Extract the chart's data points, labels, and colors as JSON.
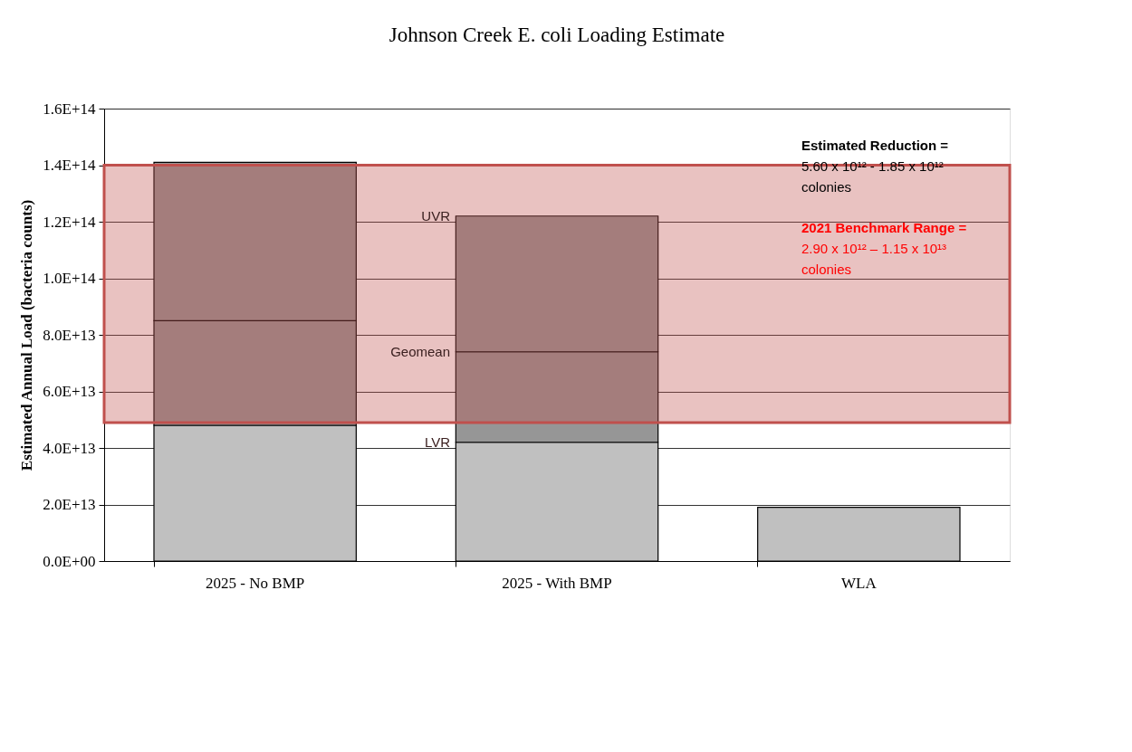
{
  "chart_data": {
    "type": "bar",
    "title": "Johnson Creek E. coli Loading Estimate",
    "ylabel": "Estimated Annual Load (bacteria counts)",
    "categories": [
      "2025 - No BMP",
      "2025 - With BMP",
      "WLA"
    ],
    "stacked": true,
    "series": [
      {
        "color": "#c0c0c0",
        "values": [
          48000000000000.0,
          42000000000000.0,
          19000000000000.0
        ]
      },
      {
        "color": "#969696",
        "values": [
          37000000000000.0,
          32000000000000.0,
          null
        ]
      },
      {
        "color": "#969696",
        "values": [
          56000000000000.0,
          48000000000000.0,
          null
        ]
      }
    ],
    "ylim": [
      0,
      160000000000000.0
    ],
    "yticks": [
      {
        "value": 0,
        "label": "0.0E+00"
      },
      {
        "value": 20000000000000.0,
        "label": "2.0E+13"
      },
      {
        "value": 40000000000000.0,
        "label": "4.0E+13"
      },
      {
        "value": 60000000000000.0,
        "label": "6.0E+13"
      },
      {
        "value": 80000000000000.0,
        "label": "8.0E+13"
      },
      {
        "value": 100000000000000.0,
        "label": "1.0E+14"
      },
      {
        "value": 120000000000000.0,
        "label": "1.2E+14"
      },
      {
        "value": 140000000000000.0,
        "label": "1.4E+14"
      },
      {
        "value": 160000000000000.0,
        "label": "1.6E+14"
      }
    ],
    "grid": "y",
    "bands": [
      {
        "axis": "y",
        "from": 49000000000000.0,
        "to": 140000000000000.0,
        "color": "#c0504d"
      }
    ],
    "annotations": [
      "UVR",
      "Geomean",
      "LVR",
      "Estimated Reduction =",
      "5.60 x 10¹² - 1.85 x 10¹²",
      "colonies",
      "2021 Benchmark Range =",
      "2.90 x 10¹² – 1.15 x 10¹³",
      "colonies"
    ]
  }
}
